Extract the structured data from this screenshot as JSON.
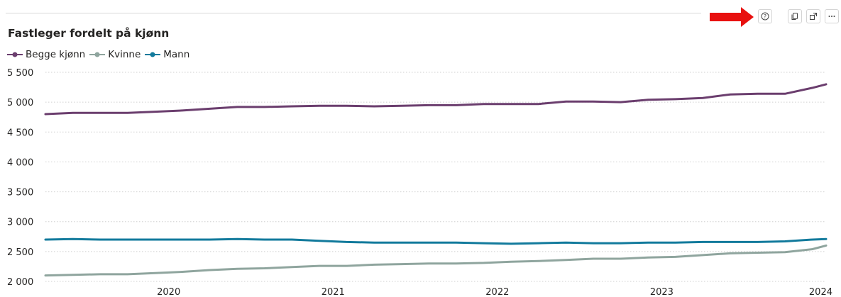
{
  "toolbar": {
    "help_icon": "help-circle-icon",
    "copy_icon": "copy-icon",
    "focus_icon": "focus-mode-icon",
    "more_icon": "more-options-icon",
    "arrow_color": "#e8100f"
  },
  "chart_data": {
    "type": "line",
    "title": "Fastleger fordelt på kjønn",
    "xlabel": "",
    "ylabel": "",
    "ylim": [
      2000,
      5500
    ],
    "yticks": [
      2000,
      2500,
      3000,
      3500,
      4000,
      4500,
      5000,
      5500
    ],
    "ytick_labels": [
      "2 000",
      "2 500",
      "3 000",
      "3 500",
      "4 000",
      "4 500",
      "5 000",
      "5 500"
    ],
    "xlim": [
      2019.25,
      2024.0
    ],
    "xticks": [
      2020,
      2021,
      2022,
      2023,
      2024
    ],
    "xtick_labels": [
      "2020",
      "2021",
      "2022",
      "2023",
      "2024"
    ],
    "grid": true,
    "legend_position": "top-left",
    "x": [
      2019.25,
      2019.417,
      2019.583,
      2019.75,
      2019.917,
      2020.083,
      2020.25,
      2020.417,
      2020.583,
      2020.75,
      2020.917,
      2021.083,
      2021.25,
      2021.417,
      2021.583,
      2021.75,
      2021.917,
      2022.083,
      2022.25,
      2022.417,
      2022.583,
      2022.75,
      2022.917,
      2023.083,
      2023.25,
      2023.417,
      2023.583,
      2023.75,
      2023.917,
      2024.0
    ],
    "series": [
      {
        "name": "Begge kjønn",
        "color": "#6b3e6e",
        "values": [
          4800,
          4820,
          4820,
          4820,
          4840,
          4860,
          4890,
          4920,
          4920,
          4930,
          4940,
          4940,
          4930,
          4940,
          4950,
          4950,
          4970,
          4970,
          4970,
          5010,
          5010,
          5000,
          5040,
          5050,
          5070,
          5130,
          5140,
          5140,
          5240,
          5300
        ]
      },
      {
        "name": "Kvinne",
        "color": "#8fa59e",
        "values": [
          2100,
          2110,
          2120,
          2120,
          2140,
          2160,
          2190,
          2210,
          2220,
          2240,
          2260,
          2260,
          2280,
          2290,
          2300,
          2300,
          2310,
          2330,
          2340,
          2360,
          2380,
          2380,
          2400,
          2410,
          2440,
          2470,
          2480,
          2490,
          2540,
          2600
        ]
      },
      {
        "name": "Mann",
        "color": "#127a9c",
        "values": [
          2700,
          2710,
          2700,
          2700,
          2700,
          2700,
          2700,
          2710,
          2700,
          2700,
          2680,
          2660,
          2650,
          2650,
          2650,
          2650,
          2640,
          2630,
          2640,
          2650,
          2640,
          2640,
          2650,
          2650,
          2660,
          2660,
          2660,
          2670,
          2700,
          2710
        ]
      }
    ]
  }
}
